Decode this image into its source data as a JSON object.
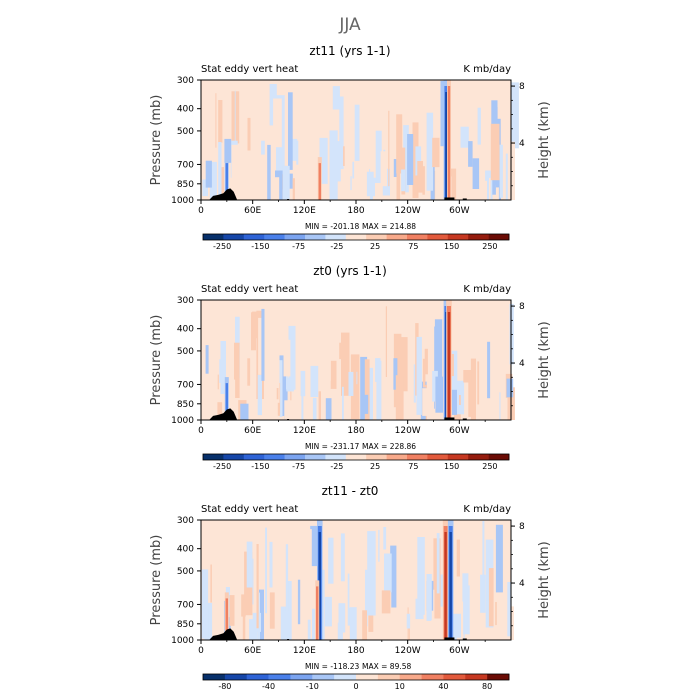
{
  "figure": {
    "title": "JJA",
    "variable_label": "Stat eddy vert heat",
    "units_label": "K mb/day",
    "left_axis_label": "Pressure (mb)",
    "right_axis_label": "Height (km)"
  },
  "chart_data": [
    {
      "type": "heatmap",
      "title": "zt11 (yrs 1-1)",
      "subtitle_left": "Stat eddy vert heat",
      "subtitle_right": "K mb/day",
      "xlabel": "",
      "ylabel": "Pressure (mb)",
      "y2label": "Height (km)",
      "x_ticks": [
        "0",
        "60E",
        "120E",
        "180",
        "120W",
        "60W"
      ],
      "x_tick_values": [
        0,
        60,
        120,
        180,
        240,
        300
      ],
      "xlim": [
        0,
        360
      ],
      "y_ticks": [
        300,
        400,
        500,
        700,
        850,
        1000
      ],
      "ylim": [
        1000,
        300
      ],
      "y2_ticks": [
        4,
        8
      ],
      "min_label": "MIN = -201.18",
      "max_label": "MAX = 214.88",
      "colorbar_labels": [
        "-250",
        "-150",
        "-75",
        "-25",
        "25",
        "75",
        "150",
        "250"
      ],
      "colors": [
        "#08306b",
        "#1546a8",
        "#2e63d6",
        "#4a80ea",
        "#7ba4f0",
        "#a8c6f6",
        "#d3e4fb",
        "#fde5d6",
        "#fbcdb4",
        "#f7a98a",
        "#f08062",
        "#e25a3c",
        "#c63821",
        "#951c0e",
        "#6b0c05"
      ],
      "features": [
        {
          "name": "east-africa-negative",
          "lon": 30,
          "p_top": 650,
          "sign": -1,
          "strength": 2
        },
        {
          "name": "east-asia-positive",
          "lon": 138,
          "p_top": 650,
          "sign": 1,
          "strength": 2
        },
        {
          "name": "andes-negative",
          "lon": 285,
          "p_top": 300,
          "sign": -1,
          "strength": 3
        },
        {
          "name": "andes-positive",
          "lon": 288,
          "p_top": 300,
          "sign": 1,
          "strength": 2
        }
      ]
    },
    {
      "type": "heatmap",
      "title": "zt0 (yrs 1-1)",
      "subtitle_left": "Stat eddy vert heat",
      "subtitle_right": "K mb/day",
      "xlabel": "",
      "ylabel": "Pressure (mb)",
      "y2label": "Height (km)",
      "x_ticks": [
        "0",
        "60E",
        "120E",
        "180",
        "120W",
        "60W"
      ],
      "x_tick_values": [
        0,
        60,
        120,
        180,
        240,
        300
      ],
      "xlim": [
        0,
        360
      ],
      "y_ticks": [
        300,
        400,
        500,
        700,
        850,
        1000
      ],
      "ylim": [
        1000,
        300
      ],
      "y2_ticks": [
        4,
        8
      ],
      "min_label": "MIN = -231.17",
      "max_label": "MAX = 228.86",
      "colorbar_labels": [
        "-250",
        "-150",
        "-75",
        "-25",
        "25",
        "75",
        "150",
        "250"
      ],
      "colors": [
        "#08306b",
        "#1546a8",
        "#2e63d6",
        "#4a80ea",
        "#7ba4f0",
        "#a8c6f6",
        "#d3e4fb",
        "#fde5d6",
        "#fbcdb4",
        "#f7a98a",
        "#f08062",
        "#e25a3c",
        "#c63821",
        "#951c0e",
        "#6b0c05"
      ],
      "features": [
        {
          "name": "east-africa-negative",
          "lon": 30,
          "p_top": 650,
          "sign": -1,
          "strength": 2
        },
        {
          "name": "east-asia-positive",
          "lon": 138,
          "p_top": 750,
          "sign": 1,
          "strength": 1
        },
        {
          "name": "andes-negative",
          "lon": 285,
          "p_top": 300,
          "sign": -1,
          "strength": 3
        },
        {
          "name": "andes-positive",
          "lon": 288,
          "p_top": 300,
          "sign": 1,
          "strength": 3
        }
      ]
    },
    {
      "type": "heatmap",
      "title": "zt11 - zt0",
      "subtitle_left": "Stat eddy vert heat",
      "subtitle_right": "K mb/day",
      "xlabel": "",
      "ylabel": "Pressure (mb)",
      "y2label": "Height (km)",
      "x_ticks": [
        "0",
        "60E",
        "120E",
        "180",
        "120W",
        "60W"
      ],
      "x_tick_values": [
        0,
        60,
        120,
        180,
        240,
        300
      ],
      "xlim": [
        0,
        360
      ],
      "y_ticks": [
        300,
        400,
        500,
        700,
        850,
        1000
      ],
      "ylim": [
        1000,
        300
      ],
      "y2_ticks": [
        4,
        8
      ],
      "min_label": "MIN = -118.23",
      "max_label": "MAX =  89.58",
      "colorbar_labels": [
        "-80",
        "-40",
        "-10",
        "0",
        "10",
        "40",
        "80"
      ],
      "colors": [
        "#08306b",
        "#1546a8",
        "#2e63d6",
        "#4a80ea",
        "#7ba4f0",
        "#a8c6f6",
        "#d3e4fb",
        "#fde5d6",
        "#fbcdb4",
        "#f7a98a",
        "#f08062",
        "#e25a3c",
        "#c63821",
        "#6b0c05"
      ],
      "features": [
        {
          "name": "east-africa-positive",
          "lon": 30,
          "p_top": 620,
          "sign": 1,
          "strength": 2
        },
        {
          "name": "east-asia-negative",
          "lon": 138,
          "p_top": 300,
          "sign": -1,
          "strength": 3
        },
        {
          "name": "east-asia-positive",
          "lon": 135,
          "p_top": 550,
          "sign": 1,
          "strength": 2
        },
        {
          "name": "andes-positive",
          "lon": 284,
          "p_top": 300,
          "sign": 1,
          "strength": 3
        },
        {
          "name": "andes-negative",
          "lon": 290,
          "p_top": 300,
          "sign": -1,
          "strength": 3
        }
      ]
    }
  ]
}
